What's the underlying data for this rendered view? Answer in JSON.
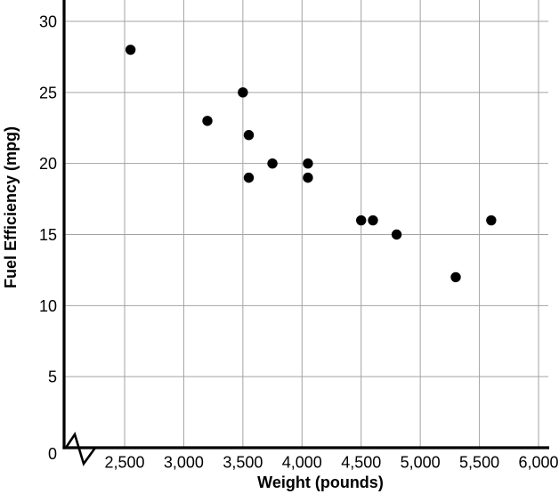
{
  "figure": {
    "background": "#ffffff"
  },
  "chart_data": {
    "type": "scatter",
    "title": "",
    "xlabel": "Weight (pounds)",
    "ylabel": "Fuel Efficiency (mpg)",
    "x_ticks": [
      2500,
      3000,
      3500,
      4000,
      4500,
      5000,
      5500,
      6000
    ],
    "x_tick_labels": [
      "2,500",
      "3,000",
      "3,500",
      "4,000",
      "4,500",
      "5,000",
      "5,500",
      "6,000"
    ],
    "y_ticks": [
      0,
      5,
      10,
      15,
      20,
      25,
      30
    ],
    "y_tick_labels": [
      "0",
      "5",
      "10",
      "15",
      "20",
      "25",
      "30"
    ],
    "xlim": [
      2500,
      6000
    ],
    "ylim": [
      0,
      30
    ],
    "grid": true,
    "legend": false,
    "x_axis_break_at_origin": true,
    "points": [
      {
        "weight": 2550,
        "mpg": 28
      },
      {
        "weight": 3200,
        "mpg": 23
      },
      {
        "weight": 3500,
        "mpg": 25
      },
      {
        "weight": 3550,
        "mpg": 22
      },
      {
        "weight": 3550,
        "mpg": 19
      },
      {
        "weight": 3750,
        "mpg": 20
      },
      {
        "weight": 4050,
        "mpg": 20
      },
      {
        "weight": 4050,
        "mpg": 19
      },
      {
        "weight": 4500,
        "mpg": 16
      },
      {
        "weight": 4600,
        "mpg": 16
      },
      {
        "weight": 4800,
        "mpg": 15
      },
      {
        "weight": 5300,
        "mpg": 12
      },
      {
        "weight": 5600,
        "mpg": 16
      }
    ],
    "point_color": "#000000",
    "grid_color": "#a3a3a3",
    "axis_color": "#000000",
    "text_color": "#000000"
  }
}
